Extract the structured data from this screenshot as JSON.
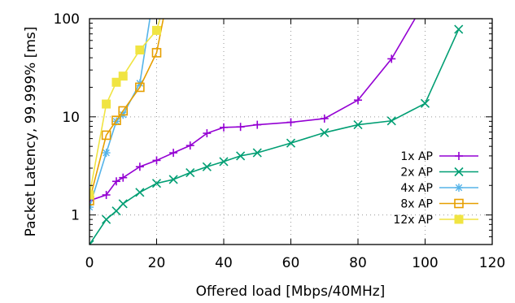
{
  "chart_data": {
    "type": "line",
    "xlabel": "Offered load [Mbps/40MHz]",
    "ylabel": "Packet Latency, 99.999% [ms]",
    "xlim": [
      0,
      120
    ],
    "ylim": [
      0.5,
      100
    ],
    "yscale": "log",
    "x_ticks": [
      0,
      20,
      40,
      60,
      80,
      100,
      120
    ],
    "y_ticks": [
      1,
      10,
      100
    ],
    "grid": true,
    "legend_position": "bottom-right",
    "series": [
      {
        "name": "1x AP",
        "color": "#9400d3",
        "marker": "plus",
        "points": [
          [
            0,
            1.4
          ],
          [
            5,
            1.6
          ],
          [
            8,
            2.2
          ],
          [
            10,
            2.4
          ],
          [
            15,
            3.1
          ],
          [
            20,
            3.6
          ],
          [
            25,
            4.3
          ],
          [
            30,
            5.1
          ],
          [
            35,
            6.8
          ],
          [
            40,
            7.8
          ],
          [
            45,
            7.9
          ],
          [
            50,
            8.3
          ],
          [
            60,
            8.8
          ],
          [
            70,
            9.6
          ],
          [
            80,
            14.8
          ],
          [
            90,
            39
          ],
          [
            97,
            100
          ]
        ]
      },
      {
        "name": "2x AP",
        "color": "#009e73",
        "marker": "cross",
        "points": [
          [
            0,
            0.5
          ],
          [
            5,
            0.9
          ],
          [
            8,
            1.1
          ],
          [
            10,
            1.3
          ],
          [
            15,
            1.7
          ],
          [
            20,
            2.1
          ],
          [
            25,
            2.3
          ],
          [
            30,
            2.7
          ],
          [
            35,
            3.1
          ],
          [
            40,
            3.5
          ],
          [
            45,
            4.0
          ],
          [
            50,
            4.3
          ],
          [
            60,
            5.4
          ],
          [
            70,
            6.9
          ],
          [
            80,
            8.3
          ],
          [
            90,
            9.1
          ],
          [
            100,
            13.7
          ],
          [
            110,
            78
          ]
        ]
      },
      {
        "name": "4x AP",
        "color": "#56b4e9",
        "marker": "star",
        "points": [
          [
            0,
            1.2
          ],
          [
            5,
            4.3
          ],
          [
            8,
            9.0
          ],
          [
            10,
            10.5
          ],
          [
            15,
            22
          ],
          [
            18,
            100
          ]
        ]
      },
      {
        "name": "8x AP",
        "color": "#e69f00",
        "marker": "square-open",
        "points": [
          [
            0,
            1.4
          ],
          [
            5,
            6.5
          ],
          [
            8,
            9.2
          ],
          [
            10,
            11.5
          ],
          [
            15,
            20
          ],
          [
            20,
            45
          ],
          [
            22,
            100
          ]
        ]
      },
      {
        "name": "12x AP",
        "color": "#f0e442",
        "marker": "square-filled",
        "points": [
          [
            0,
            1.6
          ],
          [
            5,
            13.5
          ],
          [
            8,
            22.5
          ],
          [
            10,
            26
          ],
          [
            15,
            48
          ],
          [
            20,
            76
          ],
          [
            21,
            100
          ]
        ]
      }
    ]
  }
}
